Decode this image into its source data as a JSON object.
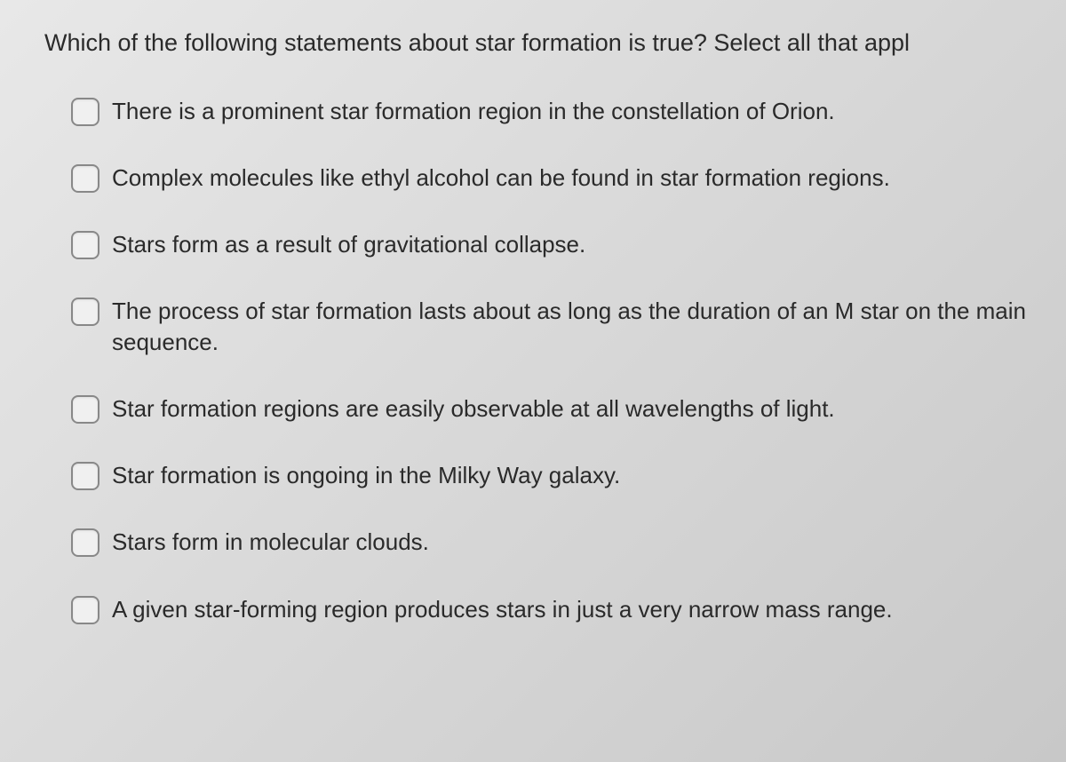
{
  "question": {
    "text": "Which of the following statements about star formation is true?  Select all that appl",
    "options": [
      {
        "text": "There is a prominent star formation region in the constellation of Orion.",
        "checked": false
      },
      {
        "text": "Complex molecules like ethyl alcohol can be found in star formation regions.",
        "checked": false
      },
      {
        "text": "Stars form as a result of gravitational collapse.",
        "checked": false
      },
      {
        "text": "The process of star formation lasts about as long as the duration of an M star on the main sequence.",
        "checked": false
      },
      {
        "text": "Star formation regions are easily observable at all wavelengths of light.",
        "checked": false
      },
      {
        "text": "Star formation is ongoing in the Milky Way galaxy.",
        "checked": false
      },
      {
        "text": "Stars form in molecular clouds.",
        "checked": false
      },
      {
        "text": "A given star-forming region produces stars in just a very narrow mass range.",
        "checked": false
      }
    ]
  },
  "colors": {
    "text": "#2a2a2a",
    "checkbox_border": "#888888",
    "checkbox_bg": "#f0f0f0",
    "page_bg_start": "#e8e8e8",
    "page_bg_end": "#c8c8c8"
  },
  "typography": {
    "question_fontsize": 27,
    "option_fontsize": 26,
    "font_family": "Helvetica Neue, Arial, sans-serif"
  }
}
